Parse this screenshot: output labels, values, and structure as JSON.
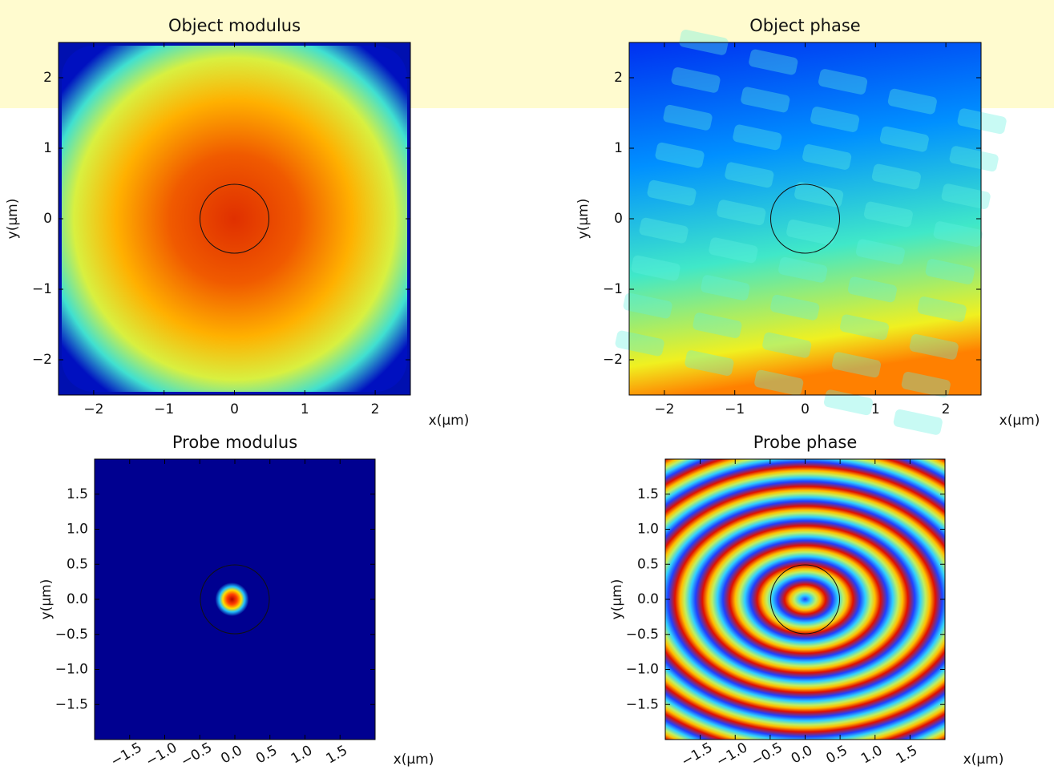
{
  "chart_data": [
    {
      "type": "image",
      "title": "Object modulus",
      "xlabel": "x(μm)",
      "ylabel": "y(μm)",
      "xlim": [
        -2.5,
        2.5
      ],
      "ylim": [
        -2.5,
        2.5
      ],
      "xticks": [
        {
          "value": -2,
          "label": "−2"
        },
        {
          "value": -1,
          "label": "−1"
        },
        0,
        1,
        2
      ],
      "yticks": [
        {
          "value": -2,
          "label": "−2"
        },
        {
          "value": -1,
          "label": "−1"
        },
        0,
        1,
        2
      ]
    },
    {
      "type": "image",
      "title": "Object phase",
      "xlabel": "x(μm)",
      "ylabel": "y(μm)",
      "xlim": [
        -2.5,
        2.5
      ],
      "ylim": [
        -2.5,
        2.5
      ],
      "xticks": [
        {
          "value": -2,
          "label": "−2"
        },
        {
          "value": -1,
          "label": "−1"
        },
        0,
        1,
        2
      ],
      "yticks": [
        {
          "value": -2,
          "label": "−2"
        },
        {
          "value": -1,
          "label": "−1"
        },
        0,
        1,
        2
      ]
    },
    {
      "type": "image",
      "title": "Probe modulus",
      "xlabel": "x(μm)",
      "ylabel": "y(μm)",
      "xlim": [
        -2,
        2
      ],
      "ylim": [
        -2,
        2
      ],
      "xticks": [
        {
          "value": -1.5,
          "label": "−1.5"
        },
        {
          "value": -1,
          "label": "−1.0"
        },
        {
          "value": -0.5,
          "label": "−0.5"
        },
        {
          "value": 0,
          "label": "0.0"
        },
        0.5,
        {
          "value": 1,
          "label": "1.0"
        },
        1.5
      ],
      "yticks": [
        {
          "value": -1.5,
          "label": "−1.5"
        },
        {
          "value": -1,
          "label": "−1.0"
        },
        {
          "value": -0.5,
          "label": "−0.5"
        },
        {
          "value": 0,
          "label": "0.0"
        },
        0.5,
        {
          "value": 1,
          "label": "1.0"
        },
        1.5
      ]
    },
    {
      "type": "image",
      "title": "Probe phase",
      "xlabel": "x(μm)",
      "ylabel": "y(μm)",
      "xlim": [
        -2,
        2
      ],
      "ylim": [
        -2,
        2
      ],
      "xticks": [
        {
          "value": -1.5,
          "label": "−1.5"
        },
        {
          "value": -1,
          "label": "−1.0"
        },
        {
          "value": -0.5,
          "label": "−0.5"
        },
        {
          "value": 0,
          "label": "0.0"
        },
        0.5,
        {
          "value": 1,
          "label": "1.0"
        },
        1.5
      ],
      "yticks": [
        {
          "value": -1.5,
          "label": "−1.5"
        },
        {
          "value": -1,
          "label": "−1.0"
        },
        {
          "value": -0.5,
          "label": "−0.5"
        },
        {
          "value": 0,
          "label": "0.0"
        },
        0.5,
        {
          "value": 1,
          "label": "1.0"
        },
        1.5
      ]
    }
  ]
}
